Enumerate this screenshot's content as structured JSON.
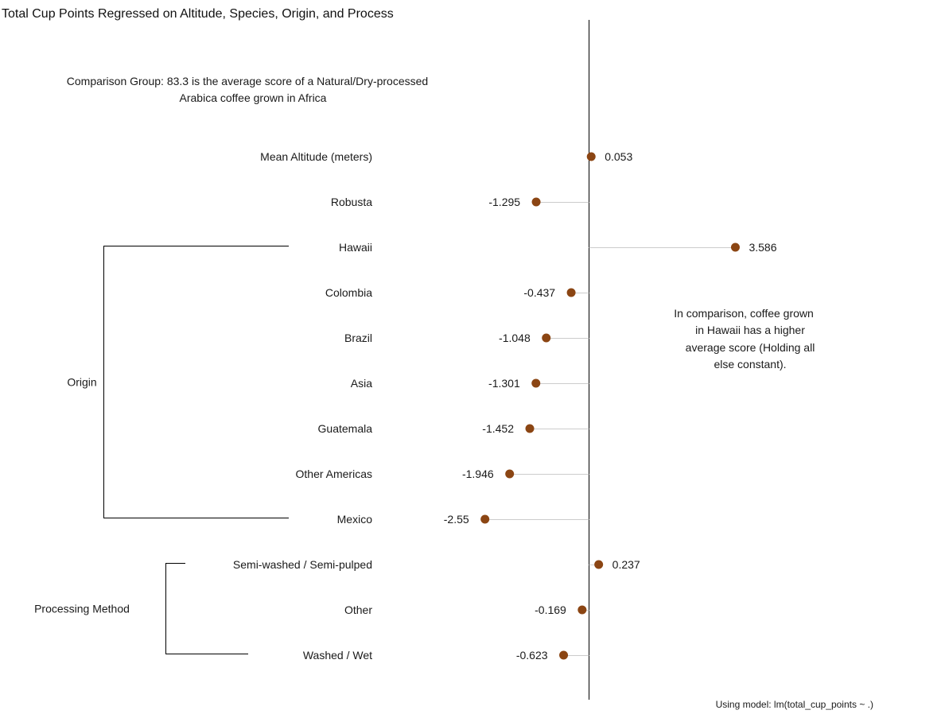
{
  "chart_data": {
    "type": "scatter",
    "title": "Total Cup Points Regressed on Altitude, Species, Origin, and Process",
    "subtitle": "",
    "xlabel": "",
    "ylabel": "",
    "xlim": [
      -2.8,
      4.2
    ],
    "zero_line": true,
    "grid": false,
    "legend": "none",
    "point_color": "#8B4513",
    "segment_color": "#cccccc",
    "baseline_note": "Comparison Group: 83.3 is the average score of a Natural/Dry-processed Arabica coffee grown in Africa",
    "baseline_note_lines": [
      "Comparison Group: 83.3 is the average score of a Natural/Dry-processed",
      "Arabica coffee grown in Africa"
    ],
    "annotation_lines": [
      "In comparison, coffee grown",
      "in Hawaii has a higher",
      "average score (Holding all",
      "else constant)."
    ],
    "caption": "Using model: lm(total_cup_points ~ .)",
    "points": [
      {
        "label": "Mean Altitude (meters)",
        "value": 0.053,
        "value_label": "0.053"
      },
      {
        "label": "Robusta",
        "value": -1.295,
        "value_label": "-1.295"
      },
      {
        "label": "Hawaii",
        "value": 3.586,
        "value_label": "3.586"
      },
      {
        "label": "Colombia",
        "value": -0.437,
        "value_label": "-0.437"
      },
      {
        "label": "Brazil",
        "value": -1.048,
        "value_label": "-1.048"
      },
      {
        "label": "Asia",
        "value": -1.301,
        "value_label": "-1.301"
      },
      {
        "label": "Guatemala",
        "value": -1.452,
        "value_label": "-1.452"
      },
      {
        "label": "Other Americas",
        "value": -1.946,
        "value_label": "-1.946"
      },
      {
        "label": "Mexico",
        "value": -2.55,
        "value_label": "-2.55"
      },
      {
        "label": "Semi-washed / Semi-pulped",
        "value": 0.237,
        "value_label": "0.237"
      },
      {
        "label": "Other",
        "value": -0.169,
        "value_label": "-0.169"
      },
      {
        "label": "Washed / Wet",
        "value": -0.623,
        "value_label": "-0.623"
      }
    ],
    "groups": [
      {
        "label": "Origin",
        "from": 2,
        "to": 8
      },
      {
        "label": "Processing Method",
        "from": 9,
        "to": 11
      }
    ]
  }
}
